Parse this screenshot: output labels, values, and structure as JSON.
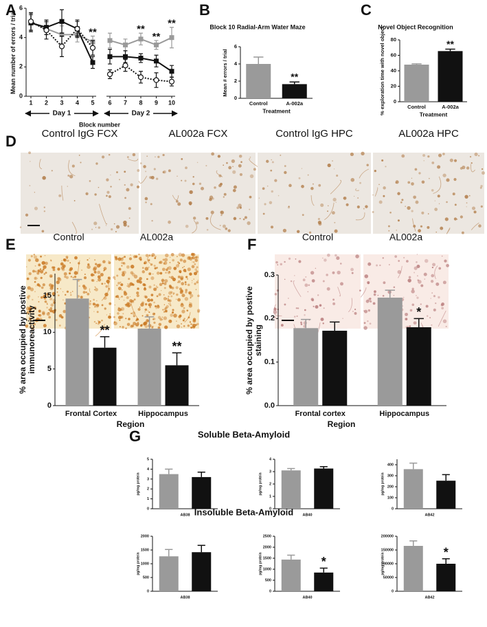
{
  "chart_data": [
    {
      "panel": "A",
      "type": "line",
      "x": [
        1,
        2,
        3,
        4,
        5,
        6,
        7,
        8,
        9,
        10
      ],
      "xticks": [
        1,
        2,
        3,
        4,
        5,
        6,
        7,
        8,
        9,
        10
      ],
      "xlim": [
        1,
        10
      ],
      "x_break_after": 5,
      "x_groups": [
        "Day 1",
        "Day 2"
      ],
      "xlabel": "Block number",
      "ylabel": "Mean number of errors / trial",
      "ylim": [
        0,
        6
      ],
      "yticks": [
        0,
        2,
        4,
        6
      ],
      "series": [
        {
          "color": "#9a9a9a",
          "marker": "square",
          "line": "solid",
          "values": [
            5.0,
            4.6,
            4.2,
            4.2,
            3.7,
            3.8,
            3.5,
            3.9,
            3.5,
            4.0
          ],
          "errors": [
            0.5,
            0.4,
            0.6,
            0.5,
            0.4,
            0.5,
            0.4,
            0.4,
            0.3,
            0.7
          ]
        },
        {
          "color": "#111111",
          "marker": "square",
          "line": "solid",
          "values": [
            5.0,
            4.7,
            5.1,
            4.6,
            2.3,
            2.7,
            2.7,
            2.6,
            2.4,
            1.7
          ],
          "errors": [
            0.6,
            0.5,
            0.8,
            0.6,
            0.4,
            0.5,
            0.4,
            0.3,
            0.4,
            0.4
          ]
        },
        {
          "color": "#111111",
          "marker": "open-circle",
          "line": "dotted",
          "values": [
            5.1,
            4.5,
            3.4,
            4.6,
            3.3,
            1.5,
            2.1,
            1.3,
            1.1,
            1.0
          ],
          "errors": [
            0.6,
            0.6,
            0.7,
            0.5,
            0.5,
            0.3,
            0.4,
            0.4,
            0.5,
            0.3
          ]
        }
      ],
      "annotations": [
        null,
        null,
        null,
        null,
        "**",
        null,
        null,
        "**",
        "**",
        "**"
      ]
    },
    {
      "panel": "B",
      "type": "bar",
      "title": "Block 10 Radial-Arm Water Maze",
      "categories": [
        "Control",
        "A-002a"
      ],
      "values": [
        4.0,
        1.65
      ],
      "errors": [
        0.8,
        0.25
      ],
      "colors": [
        "#9a9a9a",
        "#111111"
      ],
      "annotations": [
        null,
        "**"
      ],
      "xlabel": "Treatment",
      "ylabel": "Mean # errors / trial",
      "ylim": [
        0,
        6
      ],
      "yticks": [
        0,
        2,
        4,
        6
      ]
    },
    {
      "panel": "C",
      "type": "bar",
      "title": "Novel Object Recognition",
      "categories": [
        "Control",
        "A-002a"
      ],
      "values": [
        48,
        65.5
      ],
      "errors": [
        1,
        2.5
      ],
      "colors": [
        "#9a9a9a",
        "#111111"
      ],
      "annotations": [
        null,
        "**"
      ],
      "xlabel": "Treatment",
      "ylabel": "% exploration time with novel object",
      "ylim": [
        0,
        80
      ],
      "yticks": [
        0,
        20,
        40,
        60,
        80
      ]
    },
    {
      "type": "bar",
      "categories": [
        "Frontal Cortex",
        "Hippocampus"
      ],
      "series": [
        {
          "color": "#9a9a9a",
          "values": [
            14.6,
            10.5
          ],
          "errors": [
            2.6,
            1.6
          ]
        },
        {
          "color": "#111111",
          "values": [
            7.9,
            5.5
          ],
          "errors": [
            1.5,
            1.7
          ],
          "annotations": [
            "**",
            "**"
          ]
        }
      ],
      "xlabel": "Region",
      "ylabel": "% area occupied by postive immunoreactivity",
      "ylim": [
        0,
        18
      ],
      "yticks": [
        0,
        5,
        10,
        15
      ]
    },
    {
      "type": "bar",
      "categories": [
        "Frontal cortex",
        "Hippocampus"
      ],
      "series": [
        {
          "color": "#9a9a9a",
          "values": [
            0.178,
            0.248
          ],
          "errors": [
            0.02,
            0.017
          ]
        },
        {
          "color": "#111111",
          "values": [
            0.172,
            0.18
          ],
          "errors": [
            0.02,
            0.02
          ],
          "annotations": [
            null,
            "*"
          ]
        }
      ],
      "xlabel": "Region",
      "ylabel": "% area occupied by postive staining",
      "ylim": [
        0,
        0.3
      ],
      "yticks": [
        {
          "value": 0,
          "label": "0.0"
        },
        0.1,
        0.2,
        0.3
      ]
    },
    {
      "type": "bar",
      "categories": [
        null,
        null
      ],
      "values": [
        3.5,
        3.2
      ],
      "errors": [
        0.5,
        0.5
      ],
      "colors": [
        "#9a9a9a",
        "#111111"
      ],
      "xlabel": "AB38",
      "ylabel": "pg/mg protein",
      "ylim": [
        0,
        5
      ],
      "yticks": [
        0,
        1,
        2,
        3,
        4,
        5
      ]
    },
    {
      "type": "bar",
      "categories": [
        null,
        null
      ],
      "values": [
        3.1,
        3.25
      ],
      "errors": [
        0.15,
        0.15
      ],
      "colors": [
        "#9a9a9a",
        "#111111"
      ],
      "xlabel": "AB40",
      "ylabel": "pg/mg protein",
      "ylim": [
        0,
        4
      ],
      "yticks": [
        0,
        1,
        2,
        3,
        4
      ]
    },
    {
      "type": "bar",
      "categories": [
        null,
        null
      ],
      "values": [
        360,
        255
      ],
      "errors": [
        55,
        55
      ],
      "colors": [
        "#9a9a9a",
        "#111111"
      ],
      "xlabel": "AB42",
      "ylabel": "pg/mg protein",
      "ylim": [
        0,
        450
      ],
      "yticks": [
        0,
        100,
        200,
        300,
        400
      ]
    },
    {
      "type": "bar",
      "categories": [
        null,
        null
      ],
      "values": [
        1270,
        1420
      ],
      "errors": [
        250,
        250
      ],
      "colors": [
        "#9a9a9a",
        "#111111"
      ],
      "xlabel": "AB38",
      "ylabel": "pg/mg protein",
      "ylim": [
        0,
        2000
      ],
      "yticks": [
        0,
        500,
        1000,
        1500,
        2000
      ]
    },
    {
      "type": "bar",
      "categories": [
        null,
        null
      ],
      "values": [
        1440,
        850
      ],
      "errors": [
        200,
        200
      ],
      "colors": [
        "#9a9a9a",
        "#111111"
      ],
      "annotations": [
        null,
        "*"
      ],
      "xlabel": "AB40",
      "ylabel": "pg/mg protein",
      "ylim": [
        0,
        2500
      ],
      "yticks": [
        0,
        500,
        1000,
        1500,
        2000,
        2500
      ]
    },
    {
      "type": "bar",
      "categories": [
        null,
        null
      ],
      "values": [
        165000,
        100000
      ],
      "errors": [
        18000,
        18000
      ],
      "colors": [
        "#9a9a9a",
        "#111111"
      ],
      "annotations": [
        null,
        "*"
      ],
      "xlabel": "AB42",
      "ylabel": "pg/mg protein",
      "ylim": [
        0,
        200000
      ],
      "yticks": [
        0,
        50000,
        100000,
        150000,
        200000
      ]
    }
  ],
  "micrographs": [
    {
      "panel": "D",
      "labels": [
        "Control IgG FCX",
        "AL002a FCX",
        "Control IgG HPC",
        "AL002a HPC"
      ]
    },
    {
      "panel": "E",
      "labels": [
        "Control",
        "AL002a"
      ]
    },
    {
      "panel": "F",
      "labels": [
        "Control",
        "AL002a"
      ]
    }
  ],
  "amyloid_headers": {
    "panel": "G",
    "titles": [
      "Soluble Beta-Amyloid",
      "Insoluble Beta-Amyloid"
    ]
  }
}
